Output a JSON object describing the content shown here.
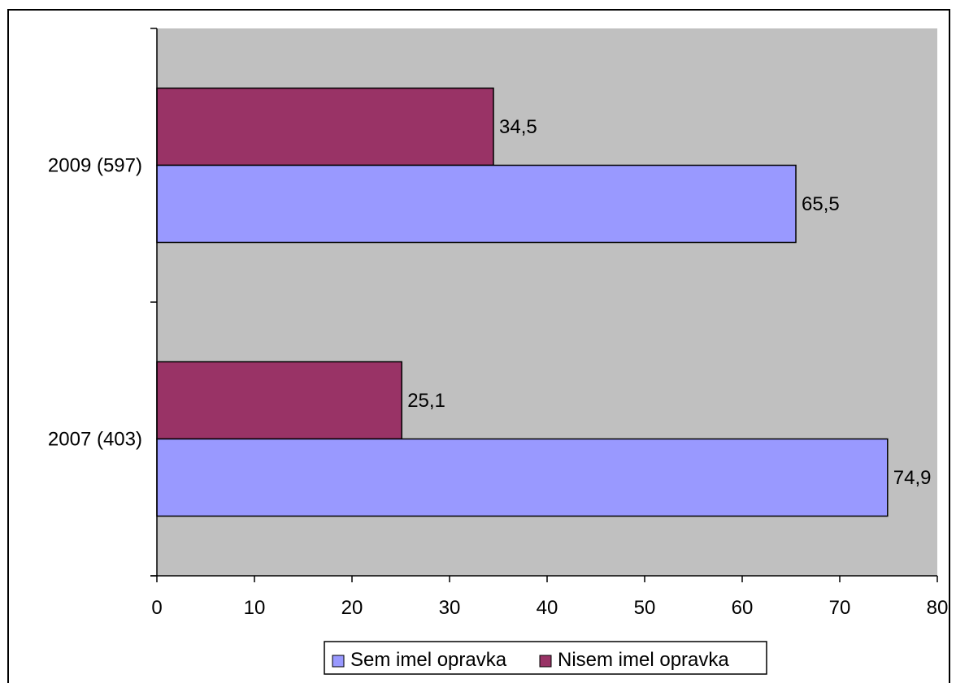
{
  "chart_data": {
    "type": "bar",
    "orientation": "horizontal",
    "categories": [
      "2009 (597)",
      "2007 (403)"
    ],
    "series": [
      {
        "name": "Sem imel opravka",
        "values": [
          65.5,
          74.9
        ],
        "labels": [
          "65,5",
          "74,9"
        ],
        "color": "#9999FF"
      },
      {
        "name": "Nisem imel opravka",
        "values": [
          34.5,
          25.1
        ],
        "labels": [
          "34,5",
          "25,1"
        ],
        "color": "#993366"
      }
    ],
    "xlim": [
      0,
      80
    ],
    "x_ticks": [
      0,
      10,
      20,
      30,
      40,
      50,
      60,
      70,
      80
    ],
    "plot_background": "#C0C0C0",
    "grid": false,
    "legend_position": "bottom",
    "title": "",
    "xlabel": "",
    "ylabel": ""
  }
}
